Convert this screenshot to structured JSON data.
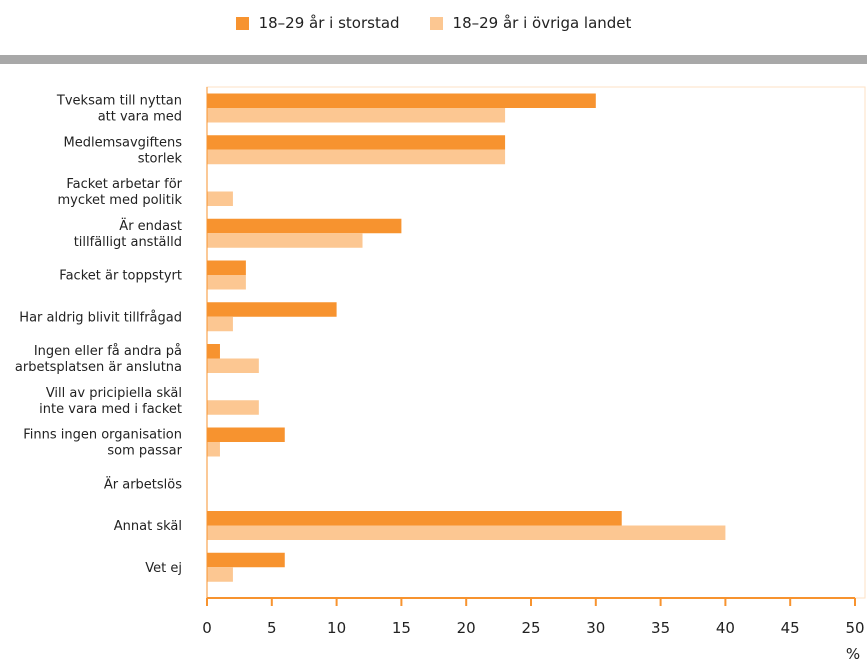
{
  "legend": {
    "series1": "18–29 år i storstad",
    "series2": "18–29 år i övriga landet"
  },
  "colors": {
    "series1": "#f7932f",
    "series2": "#fcc792",
    "axis": "#f7932f",
    "frame": "#fde2c6",
    "rule": "#a8a8a8"
  },
  "chart_data": {
    "type": "bar",
    "orientation": "horizontal",
    "categories": [
      [
        "Tveksam till nyttan",
        "att vara med"
      ],
      [
        "Medlemsavgiftens",
        "storlek"
      ],
      [
        "Facket arbetar för",
        "mycket med politik"
      ],
      [
        "Är endast",
        "tillfälligt anställd"
      ],
      [
        "Facket är toppstyrt"
      ],
      [
        "Har aldrig blivit tillfrågad"
      ],
      [
        "Ingen eller få andra på",
        "arbetsplatsen är anslutna"
      ],
      [
        "Vill av pricipiella skäl",
        "inte vara med i facket"
      ],
      [
        "Finns ingen organisation",
        "som passar"
      ],
      [
        "Är arbetslös"
      ],
      [
        "Annat skäl"
      ],
      [
        "Vet ej"
      ]
    ],
    "series": [
      {
        "name": "18–29 år i storstad",
        "values": [
          30,
          23,
          0,
          15,
          3,
          10,
          1,
          0,
          6,
          0,
          32,
          6
        ]
      },
      {
        "name": "18–29 år i övriga landet",
        "values": [
          23,
          23,
          2,
          12,
          3,
          2,
          4,
          4,
          1,
          0,
          40,
          2
        ]
      }
    ],
    "xlim": [
      0,
      50
    ],
    "xticks": [
      0,
      5,
      10,
      15,
      20,
      25,
      30,
      35,
      40,
      45,
      50
    ],
    "xunit": "%",
    "legend_position": "top-center"
  }
}
